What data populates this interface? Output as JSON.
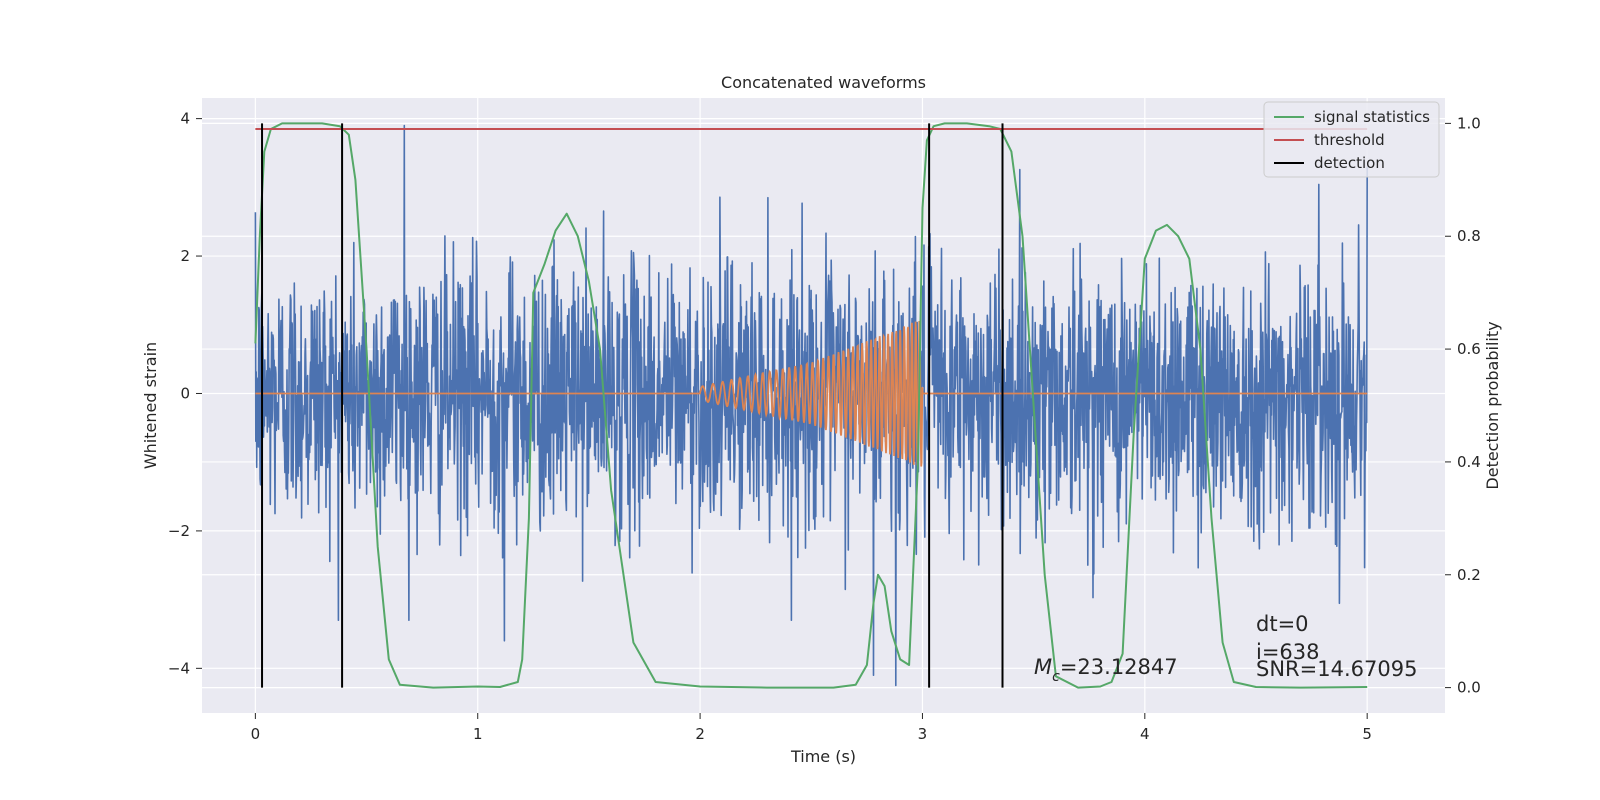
{
  "chart_data": {
    "type": "line",
    "title": "Concatenated waveforms",
    "xlabel": "Time (s)",
    "ylabel_left": "Whitened strain",
    "ylabel_right": "Detection probability",
    "xlim": [
      -0.24,
      5.35
    ],
    "ylim_left": [
      -4.65,
      4.3
    ],
    "ylim_right": [
      -0.045,
      1.045
    ],
    "xticks": [
      0,
      1,
      2,
      3,
      4,
      5
    ],
    "xtick_labels": [
      "0",
      "1",
      "2",
      "3",
      "4",
      "5"
    ],
    "yticks_left": [
      4,
      2,
      0,
      -2,
      -4
    ],
    "ytick_labels_left": [
      "4",
      "2",
      "0",
      "−2",
      "−4"
    ],
    "yticks_right": [
      1.0,
      0.8,
      0.6,
      0.4,
      0.2,
      0.0
    ],
    "ytick_labels_right": [
      "1.0",
      "0.8",
      "0.6",
      "0.4",
      "0.2",
      "0.0"
    ],
    "grid": true,
    "legend_position": "top-right",
    "series": [
      {
        "name": "",
        "kind": "noise",
        "axis": "left",
        "color": "#4c72b0",
        "x_range": [
          0,
          5
        ],
        "envelope_quantiles": [
          -1.5,
          1.5
        ],
        "notable_peaks": [
          {
            "x": 0.67,
            "y": 3.9
          },
          {
            "x": 2.88,
            "y": -4.25
          },
          {
            "x": 2.78,
            "y": -4.1
          },
          {
            "x": 5.0,
            "y": 3.3
          },
          {
            "x": 1.12,
            "y": -3.6
          }
        ]
      },
      {
        "name": "",
        "kind": "chirp",
        "axis": "left",
        "color": "#dd8452",
        "x": [
          0.0,
          2.0,
          2.0,
          2.5,
          2.9,
          3.0,
          3.0,
          5.0
        ],
        "amplitude": [
          0.0,
          0.0,
          0.1,
          0.45,
          0.95,
          1.1,
          0.0,
          0.0
        ],
        "frequency_range_hz": [
          20,
          60
        ]
      },
      {
        "name": "signal statistics",
        "axis": "right",
        "color": "#55a868",
        "x": [
          0.0,
          0.02,
          0.04,
          0.07,
          0.12,
          0.2,
          0.3,
          0.38,
          0.42,
          0.45,
          0.5,
          0.55,
          0.6,
          0.65,
          0.8,
          1.0,
          1.1,
          1.18,
          1.2,
          1.23,
          1.25,
          1.3,
          1.35,
          1.4,
          1.45,
          1.5,
          1.55,
          1.6,
          1.7,
          1.8,
          2.0,
          2.3,
          2.6,
          2.7,
          2.75,
          2.78,
          2.8,
          2.83,
          2.86,
          2.9,
          2.94,
          2.98,
          3.0,
          3.02,
          3.05,
          3.1,
          3.2,
          3.3,
          3.35,
          3.4,
          3.45,
          3.5,
          3.55,
          3.6,
          3.7,
          3.8,
          3.85,
          3.9,
          3.95,
          4.0,
          4.05,
          4.1,
          4.15,
          4.2,
          4.25,
          4.3,
          4.35,
          4.4,
          4.5,
          4.7,
          5.0
        ],
        "y": [
          0.61,
          0.8,
          0.95,
          0.99,
          1.0,
          1.0,
          1.0,
          0.995,
          0.98,
          0.9,
          0.6,
          0.25,
          0.05,
          0.005,
          0.0,
          0.002,
          0.001,
          0.01,
          0.05,
          0.3,
          0.7,
          0.75,
          0.81,
          0.84,
          0.8,
          0.72,
          0.6,
          0.35,
          0.08,
          0.01,
          0.002,
          0.0,
          0.0,
          0.005,
          0.04,
          0.15,
          0.2,
          0.18,
          0.1,
          0.05,
          0.04,
          0.4,
          0.85,
          0.97,
          0.995,
          1.0,
          1.0,
          0.995,
          0.99,
          0.95,
          0.8,
          0.5,
          0.2,
          0.02,
          0.0,
          0.002,
          0.01,
          0.06,
          0.45,
          0.76,
          0.81,
          0.82,
          0.8,
          0.76,
          0.6,
          0.3,
          0.08,
          0.01,
          0.001,
          0.0,
          0.001
        ]
      },
      {
        "name": "threshold",
        "axis": "right",
        "color": "#c44e52",
        "x": [
          0,
          5
        ],
        "y": [
          0.99,
          0.99
        ]
      },
      {
        "name": "detection",
        "axis": "right",
        "color": "#000000",
        "vertical_lines_x": [
          0.03,
          0.39,
          3.03,
          3.36
        ],
        "y_range": [
          0.0,
          1.0
        ]
      }
    ],
    "annotations": {
      "dt": "dt=0",
      "i": "i=638",
      "snr": "SNR=14.67095",
      "mc_symbol": "M",
      "mc_subscript": "c",
      "mc_value": "=23.12847"
    },
    "colors": {
      "plot_bg": "#eaeaf2",
      "grid": "#ffffff",
      "text": "#262626"
    }
  }
}
